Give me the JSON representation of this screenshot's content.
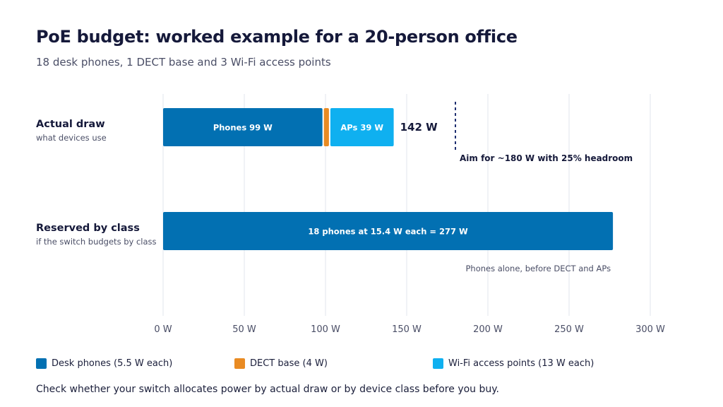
{
  "title": "PoE budget: worked example for a 20-person office",
  "subtitle": "18 desk phones, 1 DECT base and 3 Wi-Fi access points",
  "footnote": "Check whether your switch allocates power by actual draw or by device class before you buy.",
  "colors": {
    "phones": "#0270b2",
    "dect": "#e98b23",
    "aps": "#0fb0f0",
    "reference": "#1f2f70",
    "grid": "#e1e4ec",
    "text": "#1b1f3b",
    "muted": "#4a4e66"
  },
  "legend": [
    {
      "label": "Desk phones (5.5 W each)",
      "color": "#0270b2"
    },
    {
      "label": "DECT base (4 W)",
      "color": "#e98b23"
    },
    {
      "label": "Wi-Fi access points (13 W each)",
      "color": "#0fb0f0"
    }
  ],
  "chart_data": {
    "type": "bar",
    "orientation": "horizontal",
    "stacked": true,
    "title": "PoE budget: worked example for a 20-person office",
    "subtitle": "18 desk phones, 1 DECT base and 3 Wi-Fi access points",
    "xlim": [
      0,
      300
    ],
    "x_ticks": [
      0,
      50,
      100,
      150,
      200,
      250,
      300
    ],
    "x_tick_labels": [
      "0 W",
      "50 W",
      "100 W",
      "150 W",
      "200 W",
      "250 W",
      "300 W"
    ],
    "grid": true,
    "legend_position": "bottom",
    "categories": [
      {
        "label": "Actual draw",
        "sublabel": "what devices use",
        "total": 142,
        "total_label": "142 W"
      },
      {
        "label": "Reserved by class",
        "sublabel": "if the switch budgets by class",
        "total": 277,
        "total_label": ""
      }
    ],
    "series": [
      {
        "name": "Desk phones (5.5 W each)",
        "color": "#0270b2",
        "values": [
          99,
          277
        ],
        "labels": [
          "Phones 99 W",
          "18 phones at 15.4 W each = 277 W"
        ]
      },
      {
        "name": "DECT base (4 W)",
        "color": "#e98b23",
        "values": [
          4,
          0
        ],
        "labels": [
          "",
          ""
        ]
      },
      {
        "name": "Wi-Fi access points (13 W each)",
        "color": "#0fb0f0",
        "values": [
          39,
          0
        ],
        "labels": [
          "APs 39 W",
          ""
        ]
      }
    ],
    "reference_line": {
      "value": 180,
      "label": "Aim for ~180 W with 25% headroom"
    },
    "annotations": [
      {
        "text": "Phones alone, before DECT and APs",
        "category": 1
      }
    ]
  }
}
